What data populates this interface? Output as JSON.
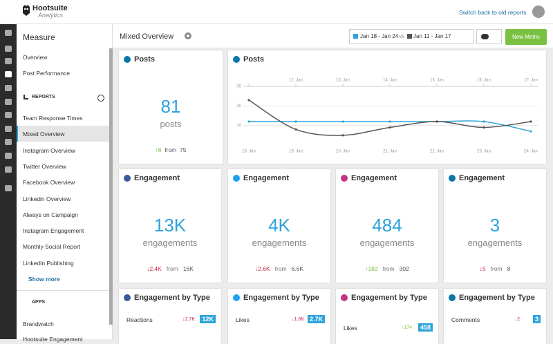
{
  "header": {
    "brand": "Hootsuite",
    "product": "Analytics",
    "switch_link": "Switch back to old reports"
  },
  "sidebar": {
    "title": "Measure",
    "top_items": [
      "Overview",
      "Post Performance"
    ],
    "reports_heading": "REPORTS",
    "reports": [
      "Team Response Times",
      "Mixed Overview",
      "Instagram Overview",
      "Twitter Overview",
      "Facebook Overview",
      "Linkedin Overview",
      "Always on Campaign",
      "Instagram Engagement",
      "Monthly Social Report",
      "LinkedIn Publishing"
    ],
    "show_more": "Show more",
    "apps_heading": "APPS",
    "apps": [
      "Brandwatch",
      "Hootsuite Engagement"
    ]
  },
  "toolbar": {
    "title": "Mixed Overview",
    "range_current": "Jan 18 - Jan 24",
    "vs": "vs",
    "range_previous": "Jan 11 - Jan 17",
    "new_metric": "New Metric"
  },
  "posts_card": {
    "title": "Posts",
    "value": "81",
    "unit": "posts",
    "change": "↑6",
    "from": "from",
    "previous": "75"
  },
  "posts_chart": {
    "title": "Posts",
    "type": "line",
    "categories": [
      "18. Jan",
      "19. Jan",
      "20. Jan",
      "21. Jan",
      "22. Jan",
      "23. Jan",
      "24. Jan"
    ],
    "top_categories": [
      null,
      "12. Jan",
      "13. Jan",
      "14. Jan",
      "15. Jan",
      "16. Jan",
      "17. Jan"
    ],
    "ylim": [
      0,
      30
    ],
    "yticks": [
      10,
      20,
      30
    ],
    "grid": true,
    "series": [
      {
        "color": "#2ea3dc",
        "values": [
          12,
          12,
          12,
          12,
          12,
          12,
          7
        ]
      },
      {
        "color": "#555555",
        "values": [
          23,
          8,
          5,
          9,
          12,
          9,
          12
        ]
      }
    ]
  },
  "engagement_cards": [
    {
      "title": "Engagement",
      "value": "13K",
      "unit": "engagements",
      "change": "↓2.4K",
      "from": "from",
      "previous": "16K"
    },
    {
      "title": "Engagement",
      "value": "4K",
      "unit": "engagements",
      "change": "↓2.6K",
      "from": "from",
      "previous": "6.6K"
    },
    {
      "title": "Engagement",
      "value": "484",
      "unit": "engagements",
      "change": "↑182",
      "from": "from",
      "previous": "302"
    },
    {
      "title": "Engagement",
      "value": "3",
      "unit": "engagements",
      "change": "↓5",
      "from": "from",
      "previous": "8"
    }
  ],
  "type_cards": [
    {
      "title": "Engagement by Type",
      "label": "Reactions",
      "change": "↓2.7K",
      "value": "12K"
    },
    {
      "title": "Engagement by Type",
      "label": "Likes",
      "change": "↓1.6K",
      "value": "2.7K"
    },
    {
      "title": "Engagement by Type",
      "label": "Likes",
      "change": "↑174",
      "value": "458"
    },
    {
      "title": "Engagement by Type",
      "label": "Comments",
      "change": "↓2",
      "value": "3"
    }
  ]
}
